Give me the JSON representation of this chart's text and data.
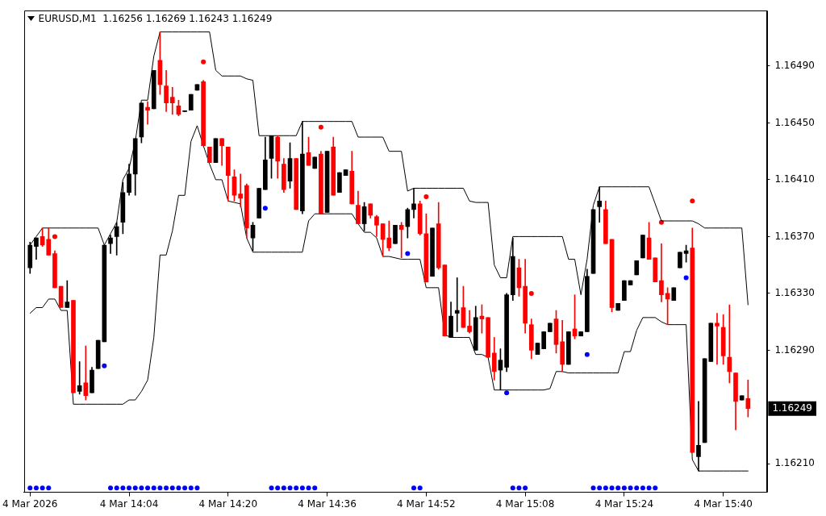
{
  "chart_data": {
    "type": "candlestick",
    "title": "EURUSD,M1  1.16256 1.16269 1.16243 1.16249",
    "x": [
      "2026-03-04T13:48",
      "2026-03-04T13:49",
      "2026-03-04T13:50",
      "2026-03-04T13:51",
      "2026-03-04T13:52",
      "2026-03-04T13:53",
      "2026-03-04T13:54",
      "2026-03-04T13:55",
      "2026-03-04T13:56",
      "2026-03-04T13:57",
      "2026-03-04T13:58",
      "2026-03-04T13:59",
      "2026-03-04T14:00",
      "2026-03-04T14:01",
      "2026-03-04T14:02",
      "2026-03-04T14:03",
      "2026-03-04T14:04",
      "2026-03-04T14:05",
      "2026-03-04T14:06",
      "2026-03-04T14:07",
      "2026-03-04T14:08",
      "2026-03-04T14:09",
      "2026-03-04T14:10",
      "2026-03-04T14:11",
      "2026-03-04T14:12",
      "2026-03-04T14:13",
      "2026-03-04T14:14",
      "2026-03-04T14:15",
      "2026-03-04T14:16",
      "2026-03-04T14:17",
      "2026-03-04T14:18",
      "2026-03-04T14:19",
      "2026-03-04T14:20",
      "2026-03-04T14:21",
      "2026-03-04T14:22",
      "2026-03-04T14:23",
      "2026-03-04T14:24",
      "2026-03-04T14:25",
      "2026-03-04T14:26",
      "2026-03-04T14:27",
      "2026-03-04T14:28",
      "2026-03-04T14:29",
      "2026-03-04T14:30",
      "2026-03-04T14:31",
      "2026-03-04T14:32",
      "2026-03-04T14:33",
      "2026-03-04T14:34",
      "2026-03-04T14:35",
      "2026-03-04T14:36",
      "2026-03-04T14:37",
      "2026-03-04T14:38",
      "2026-03-04T14:39",
      "2026-03-04T14:40",
      "2026-03-04T14:41",
      "2026-03-04T14:42",
      "2026-03-04T14:43",
      "2026-03-04T14:44",
      "2026-03-04T14:45",
      "2026-03-04T14:46",
      "2026-03-04T14:47",
      "2026-03-04T14:48",
      "2026-03-04T14:49",
      "2026-03-04T14:50",
      "2026-03-04T14:51",
      "2026-03-04T14:52",
      "2026-03-04T14:53",
      "2026-03-04T14:54",
      "2026-03-04T14:55",
      "2026-03-04T14:56",
      "2026-03-04T14:57",
      "2026-03-04T14:58",
      "2026-03-04T14:59",
      "2026-03-04T15:00",
      "2026-03-04T15:01",
      "2026-03-04T15:02",
      "2026-03-04T15:03",
      "2026-03-04T15:04",
      "2026-03-04T15:05",
      "2026-03-04T15:06",
      "2026-03-04T15:07",
      "2026-03-04T15:08",
      "2026-03-04T15:09",
      "2026-03-04T15:10",
      "2026-03-04T15:11",
      "2026-03-04T15:12",
      "2026-03-04T15:13",
      "2026-03-04T15:14",
      "2026-03-04T15:15",
      "2026-03-04T15:16",
      "2026-03-04T15:17",
      "2026-03-04T15:18",
      "2026-03-04T15:19",
      "2026-03-04T15:20",
      "2026-03-04T15:21",
      "2026-03-04T15:22",
      "2026-03-04T15:23",
      "2026-03-04T15:24",
      "2026-03-04T15:25",
      "2026-03-04T15:26",
      "2026-03-04T15:27",
      "2026-03-04T15:28",
      "2026-03-04T15:29",
      "2026-03-04T15:30",
      "2026-03-04T15:31",
      "2026-03-04T15:32",
      "2026-03-04T15:33",
      "2026-03-04T15:34",
      "2026-03-04T15:35",
      "2026-03-04T15:36",
      "2026-03-04T15:37",
      "2026-03-04T15:38",
      "2026-03-04T15:39",
      "2026-03-04T15:40",
      "2026-03-04T15:41",
      "2026-03-04T15:42",
      "2026-03-04T15:43",
      "2026-03-04T15:44"
    ],
    "ohlc": [
      [
        1.16348,
        1.16366,
        1.16344,
        1.16364
      ],
      [
        1.16363,
        1.16369,
        1.16354,
        1.16369
      ],
      [
        1.1637,
        1.16376,
        1.16363,
        1.16364
      ],
      [
        1.16368,
        1.16376,
        1.16357,
        1.16357
      ],
      [
        1.16358,
        1.1636,
        1.16334,
        1.16334
      ],
      [
        1.16335,
        1.16335,
        1.1632,
        1.1632
      ],
      [
        1.1632,
        1.16339,
        1.1632,
        1.16324
      ],
      [
        1.16325,
        1.16325,
        1.1626,
        1.1626
      ],
      [
        1.16261,
        1.16282,
        1.16259,
        1.16265
      ],
      [
        1.16267,
        1.16293,
        1.16255,
        1.16258
      ],
      [
        1.1626,
        1.16278,
        1.1626,
        1.16276
      ],
      [
        1.16277,
        1.16297,
        1.16277,
        1.16297
      ],
      [
        1.16296,
        1.16364,
        1.16296,
        1.16364
      ],
      [
        1.16365,
        1.16371,
        1.16358,
        1.16369
      ],
      [
        1.1637,
        1.1638,
        1.16357,
        1.16377
      ],
      [
        1.1638,
        1.16408,
        1.16372,
        1.16401
      ],
      [
        1.16401,
        1.16421,
        1.16399,
        1.16414
      ],
      [
        1.16414,
        1.16439,
        1.16399,
        1.16439
      ],
      [
        1.1644,
        1.16464,
        1.16436,
        1.16464
      ],
      [
        1.16461,
        1.16465,
        1.16449,
        1.16459
      ],
      [
        1.1646,
        1.16487,
        1.1646,
        1.16487
      ],
      [
        1.16494,
        1.16514,
        1.1647,
        1.16477
      ],
      [
        1.16476,
        1.16487,
        1.16458,
        1.16464
      ],
      [
        1.16468,
        1.16475,
        1.16456,
        1.16464
      ],
      [
        1.16462,
        1.16466,
        1.16455,
        1.16456
      ],
      [
        1.16458,
        1.16458,
        1.16458,
        1.16458
      ],
      [
        1.16459,
        1.1647,
        1.16459,
        1.1647
      ],
      [
        1.16473,
        1.16477,
        1.16473,
        1.16477
      ],
      [
        1.16479,
        1.1648,
        1.16434,
        1.16434
      ],
      [
        1.16433,
        1.16433,
        1.16422,
        1.16422
      ],
      [
        1.16422,
        1.16439,
        1.16422,
        1.16439
      ],
      [
        1.16439,
        1.16439,
        1.1642,
        1.16434
      ],
      [
        1.16433,
        1.16433,
        1.16395,
        1.16413
      ],
      [
        1.16412,
        1.16417,
        1.16395,
        1.16399
      ],
      [
        1.164,
        1.16414,
        1.16391,
        1.16397
      ],
      [
        1.16406,
        1.16407,
        1.16369,
        1.16376
      ],
      [
        1.16369,
        1.1638,
        1.1636,
        1.16378
      ],
      [
        1.16383,
        1.16404,
        1.16383,
        1.16404
      ],
      [
        1.16403,
        1.1644,
        1.16403,
        1.16424
      ],
      [
        1.16425,
        1.16441,
        1.16411,
        1.16441
      ],
      [
        1.1644,
        1.16441,
        1.16411,
        1.16423
      ],
      [
        1.16421,
        1.16425,
        1.16401,
        1.16403
      ],
      [
        1.16409,
        1.16436,
        1.16404,
        1.16425
      ],
      [
        1.16425,
        1.16425,
        1.16389,
        1.16389
      ],
      [
        1.16388,
        1.16451,
        1.16386,
        1.16428
      ],
      [
        1.16429,
        1.1644,
        1.1642,
        1.1642
      ],
      [
        1.16418,
        1.16426,
        1.16418,
        1.16426
      ],
      [
        1.16428,
        1.1643,
        1.16386,
        1.16386
      ],
      [
        1.16387,
        1.1643,
        1.16387,
        1.1643
      ],
      [
        1.16433,
        1.1644,
        1.16399,
        1.16399
      ],
      [
        1.16401,
        1.16415,
        1.16401,
        1.16415
      ],
      [
        1.16413,
        1.16417,
        1.16413,
        1.16417
      ],
      [
        1.16416,
        1.1643,
        1.16393,
        1.16393
      ],
      [
        1.16392,
        1.16402,
        1.16379,
        1.16379
      ],
      [
        1.16379,
        1.16394,
        1.16374,
        1.16391
      ],
      [
        1.16393,
        1.16393,
        1.16383,
        1.16385
      ],
      [
        1.16384,
        1.16385,
        1.1637,
        1.16378
      ],
      [
        1.16379,
        1.16379,
        1.16356,
        1.16368
      ],
      [
        1.16369,
        1.16381,
        1.1636,
        1.16362
      ],
      [
        1.16365,
        1.16378,
        1.16365,
        1.16378
      ],
      [
        1.16378,
        1.1638,
        1.16355,
        1.16375
      ],
      [
        1.16377,
        1.1639,
        1.16369,
        1.16389
      ],
      [
        1.16389,
        1.16404,
        1.16383,
        1.16393
      ],
      [
        1.16393,
        1.16395,
        1.16371,
        1.16372
      ],
      [
        1.16372,
        1.16386,
        1.16338,
        1.16338
      ],
      [
        1.16342,
        1.16376,
        1.16342,
        1.16376
      ],
      [
        1.16379,
        1.16394,
        1.16347,
        1.16348
      ],
      [
        1.1635,
        1.1635,
        1.163,
        1.163
      ],
      [
        1.16299,
        1.16324,
        1.16299,
        1.16314
      ],
      [
        1.16316,
        1.16341,
        1.16303,
        1.16318
      ],
      [
        1.1632,
        1.16335,
        1.16306,
        1.16306
      ],
      [
        1.16307,
        1.16318,
        1.16302,
        1.16303
      ],
      [
        1.1629,
        1.16321,
        1.1629,
        1.16313
      ],
      [
        1.16314,
        1.16322,
        1.16302,
        1.16312
      ],
      [
        1.16313,
        1.16313,
        1.16285,
        1.16285
      ],
      [
        1.16288,
        1.16299,
        1.16269,
        1.16275
      ],
      [
        1.16276,
        1.16291,
        1.16262,
        1.16283
      ],
      [
        1.16278,
        1.1633,
        1.16275,
        1.16329
      ],
      [
        1.16329,
        1.16369,
        1.16325,
        1.16356
      ],
      [
        1.16348,
        1.16354,
        1.16328,
        1.16334
      ],
      [
        1.16335,
        1.16354,
        1.16302,
        1.16309
      ],
      [
        1.16308,
        1.16312,
        1.16284,
        1.1629
      ],
      [
        1.16287,
        1.16295,
        1.16287,
        1.16295
      ],
      [
        1.16291,
        1.16303,
        1.16291,
        1.16303
      ],
      [
        1.16303,
        1.16309,
        1.16303,
        1.16309
      ],
      [
        1.16312,
        1.16318,
        1.16288,
        1.16294
      ],
      [
        1.16296,
        1.16311,
        1.16275,
        1.1628
      ],
      [
        1.1628,
        1.16303,
        1.1628,
        1.16303
      ],
      [
        1.16305,
        1.16329,
        1.16298,
        1.163
      ],
      [
        1.163,
        1.16303,
        1.163,
        1.16303
      ],
      [
        1.16303,
        1.16347,
        1.16303,
        1.16342
      ],
      [
        1.16344,
        1.16389,
        1.16344,
        1.16389
      ],
      [
        1.16391,
        1.16405,
        1.1638,
        1.16395
      ],
      [
        1.16389,
        1.16395,
        1.16365,
        1.16365
      ],
      [
        1.16368,
        1.16368,
        1.16317,
        1.1632
      ],
      [
        1.16318,
        1.16323,
        1.16318,
        1.16323
      ],
      [
        1.16325,
        1.16339,
        1.16325,
        1.16339
      ],
      [
        1.16336,
        1.16339,
        1.16336,
        1.16339
      ],
      [
        1.16343,
        1.16353,
        1.16343,
        1.16353
      ],
      [
        1.16355,
        1.16371,
        1.16355,
        1.16371
      ],
      [
        1.16369,
        1.1638,
        1.16354,
        1.16354
      ],
      [
        1.16355,
        1.16355,
        1.16338,
        1.16338
      ],
      [
        1.16339,
        1.16365,
        1.16324,
        1.16329
      ],
      [
        1.1633,
        1.16334,
        1.16308,
        1.16326
      ],
      [
        1.16325,
        1.16334,
        1.16325,
        1.16334
      ],
      [
        1.16348,
        1.16359,
        1.16348,
        1.16359
      ],
      [
        1.16358,
        1.16364,
        1.16352,
        1.1636
      ],
      [
        1.16362,
        1.16376,
        1.16218,
        1.16218
      ],
      [
        1.16215,
        1.16254,
        1.16205,
        1.16223
      ],
      [
        1.16225,
        1.16284,
        1.16225,
        1.16284
      ],
      [
        1.16282,
        1.16309,
        1.16282,
        1.16309
      ],
      [
        1.16309,
        1.16316,
        1.1628,
        1.16307
      ],
      [
        1.16306,
        1.16315,
        1.1628,
        1.16286
      ],
      [
        1.16285,
        1.16322,
        1.16267,
        1.16275
      ],
      [
        1.16274,
        1.16274,
        1.16234,
        1.16254
      ],
      [
        1.16255,
        1.16258,
        1.16255,
        1.16258
      ],
      [
        1.16256,
        1.16269,
        1.16243,
        1.16249
      ]
    ],
    "colors": [
      "#000000",
      "#000000",
      "#ff0000",
      "#ff0000",
      "#ff0000",
      "#ff0000",
      "#000000",
      "#ff0000",
      "#000000",
      "#ff0000",
      "#000000",
      "#000000",
      "#000000",
      "#000000",
      "#000000",
      "#000000",
      "#000000",
      "#000000",
      "#000000",
      "#ff0000",
      "#000000",
      "#ff0000",
      "#ff0000",
      "#ff0000",
      "#ff0000",
      "#000000",
      "#000000",
      "#000000",
      "#ff0000",
      "#ff0000",
      "#000000",
      "#ff0000",
      "#ff0000",
      "#ff0000",
      "#ff0000",
      "#ff0000",
      "#000000",
      "#000000",
      "#000000",
      "#000000",
      "#ff0000",
      "#ff0000",
      "#000000",
      "#ff0000",
      "#000000",
      "#ff0000",
      "#000000",
      "#ff0000",
      "#000000",
      "#ff0000",
      "#000000",
      "#000000",
      "#ff0000",
      "#ff0000",
      "#000000",
      "#ff0000",
      "#ff0000",
      "#ff0000",
      "#ff0000",
      "#000000",
      "#ff0000",
      "#000000",
      "#000000",
      "#ff0000",
      "#ff0000",
      "#000000",
      "#ff0000",
      "#ff0000",
      "#000000",
      "#000000",
      "#ff0000",
      "#ff0000",
      "#000000",
      "#ff0000",
      "#ff0000",
      "#ff0000",
      "#000000",
      "#000000",
      "#000000",
      "#ff0000",
      "#ff0000",
      "#ff0000",
      "#000000",
      "#000000",
      "#000000",
      "#ff0000",
      "#ff0000",
      "#000000",
      "#ff0000",
      "#000000",
      "#000000",
      "#000000",
      "#000000",
      "#ff0000",
      "#ff0000",
      "#000000",
      "#000000",
      "#000000",
      "#000000",
      "#000000",
      "#ff0000",
      "#ff0000",
      "#ff0000",
      "#ff0000",
      "#000000",
      "#000000",
      "#000000",
      "#ff0000",
      "#000000",
      "#000000",
      "#000000",
      "#ff0000",
      "#ff0000",
      "#ff0000",
      "#ff0000",
      "#000000",
      "#ff0000"
    ],
    "series": [
      {
        "type": "line",
        "color": "#000000",
        "values": [
          1.16364,
          1.1637,
          1.16376,
          1.16376,
          1.16376,
          1.16376,
          1.16376,
          1.16376,
          1.16376,
          1.16376,
          1.16376,
          1.16376,
          1.16364,
          1.16372,
          1.1638,
          1.1641,
          1.16418,
          1.16437,
          1.16466,
          1.16466,
          1.16497,
          1.16514,
          1.16514,
          1.16514,
          1.16514,
          1.16514,
          1.16514,
          1.16514,
          1.16514,
          1.16514,
          1.16487,
          1.16483,
          1.16483,
          1.16483,
          1.16483,
          1.16481,
          1.1648,
          1.16441,
          1.16441,
          1.16441,
          1.16441,
          1.16441,
          1.16441,
          1.16441,
          1.16451,
          1.16451,
          1.16451,
          1.16451,
          1.16451,
          1.16451,
          1.16451,
          1.16451,
          1.16451,
          1.1644,
          1.1644,
          1.1644,
          1.1644,
          1.1644,
          1.1643,
          1.1643,
          1.1643,
          1.16402,
          1.16404,
          1.16404,
          1.16404,
          1.16404,
          1.16404,
          1.16404,
          1.16404,
          1.16404,
          1.16404,
          1.16395,
          1.16394,
          1.16394,
          1.16394,
          1.1635,
          1.16341,
          1.16341,
          1.1637,
          1.1637,
          1.1637,
          1.1637,
          1.1637,
          1.1637,
          1.1637,
          1.1637,
          1.1637,
          1.16354,
          1.16354,
          1.16329,
          1.16354,
          1.16392,
          1.16405,
          1.16405,
          1.16405,
          1.16405,
          1.16405,
          1.16405,
          1.16405,
          1.16405,
          1.16405,
          1.16393,
          1.16381,
          1.16381,
          1.16381,
          1.16381,
          1.16381,
          1.16381,
          1.16379,
          1.16376,
          1.16376,
          1.16376,
          1.16376,
          1.16376,
          1.16376,
          1.16376,
          1.16322
        ]
      },
      {
        "type": "line",
        "color": "#000000",
        "values": [
          1.16316,
          1.1632,
          1.1632,
          1.16326,
          1.16326,
          1.16318,
          1.16318,
          1.16252,
          1.16252,
          1.16252,
          1.16252,
          1.16252,
          1.16252,
          1.16252,
          1.16252,
          1.16252,
          1.16255,
          1.16255,
          1.16261,
          1.16269,
          1.16299,
          1.16357,
          1.16357,
          1.16374,
          1.16399,
          1.16399,
          1.16437,
          1.16448,
          1.16434,
          1.16421,
          1.1641,
          1.1641,
          1.16395,
          1.16394,
          1.16393,
          1.16369,
          1.16359,
          1.16359,
          1.16359,
          1.16359,
          1.16359,
          1.16359,
          1.16359,
          1.16359,
          1.16359,
          1.16381,
          1.16386,
          1.16386,
          1.16386,
          1.16386,
          1.16386,
          1.16386,
          1.16386,
          1.16379,
          1.16373,
          1.16373,
          1.16369,
          1.16356,
          1.16356,
          1.16355,
          1.16354,
          1.16354,
          1.16354,
          1.16354,
          1.16334,
          1.16334,
          1.16334,
          1.16301,
          1.16299,
          1.16299,
          1.16299,
          1.16299,
          1.16287,
          1.16287,
          1.16285,
          1.16262,
          1.16262,
          1.16262,
          1.16262,
          1.16262,
          1.16262,
          1.16262,
          1.16262,
          1.16262,
          1.16263,
          1.16275,
          1.16275,
          1.16274,
          1.16274,
          1.16274,
          1.16274,
          1.16274,
          1.16274,
          1.16274,
          1.16274,
          1.16274,
          1.16289,
          1.16289,
          1.16304,
          1.16313,
          1.16313,
          1.16313,
          1.1631,
          1.16308,
          1.16308,
          1.16308,
          1.16308,
          1.16213,
          1.16205,
          1.16205,
          1.16205,
          1.16205,
          1.16205,
          1.16205,
          1.16205,
          1.16205,
          1.16205
        ]
      },
      {
        "type": "scatter",
        "color": "#ff0000",
        "marker": "circle",
        "x": [
          "2026-03-04T13:52",
          "2026-03-04T14:16",
          "2026-03-04T14:35",
          "2026-03-04T14:52",
          "2026-03-04T15:09",
          "2026-03-04T15:30",
          "2026-03-04T15:35"
        ],
        "values": [
          1.1637,
          1.16493,
          1.16447,
          1.16398,
          1.1633,
          1.1638,
          1.16395
        ]
      },
      {
        "type": "scatter",
        "color": "#0000ff",
        "marker": "circle",
        "x": [
          "2026-03-04T14:00",
          "2026-03-04T14:26",
          "2026-03-04T14:49",
          "2026-03-04T15:05",
          "2026-03-04T15:18",
          "2026-03-04T15:34"
        ],
        "values": [
          1.16279,
          1.1639,
          1.16358,
          1.1626,
          1.16287,
          1.16341
        ]
      },
      {
        "type": "scatter",
        "color": "#0000ff",
        "marker": "circle",
        "x": [
          "2026-03-04T13:48",
          "2026-03-04T13:49",
          "2026-03-04T13:50",
          "2026-03-04T13:51",
          "2026-03-04T14:01",
          "2026-03-04T14:02",
          "2026-03-04T14:03",
          "2026-03-04T14:04",
          "2026-03-04T14:05",
          "2026-03-04T14:06",
          "2026-03-04T14:07",
          "2026-03-04T14:08",
          "2026-03-04T14:09",
          "2026-03-04T14:10",
          "2026-03-04T14:11",
          "2026-03-04T14:12",
          "2026-03-04T14:13",
          "2026-03-04T14:14",
          "2026-03-04T14:15",
          "2026-03-04T14:27",
          "2026-03-04T14:28",
          "2026-03-04T14:29",
          "2026-03-04T14:30",
          "2026-03-04T14:31",
          "2026-03-04T14:32",
          "2026-03-04T14:33",
          "2026-03-04T14:34",
          "2026-03-04T14:50",
          "2026-03-04T14:51",
          "2026-03-04T15:06",
          "2026-03-04T15:07",
          "2026-03-04T15:08",
          "2026-03-04T15:19",
          "2026-03-04T15:20",
          "2026-03-04T15:21",
          "2026-03-04T15:22",
          "2026-03-04T15:23",
          "2026-03-04T15:24",
          "2026-03-04T15:25",
          "2026-03-04T15:26",
          "2026-03-04T15:27",
          "2026-03-04T15:28",
          "2026-03-04T15:29"
        ],
        "values": [
          1.16193,
          1.16193,
          1.16193,
          1.16193,
          1.16193,
          1.16193,
          1.16193,
          1.16193,
          1.16193,
          1.16193,
          1.16193,
          1.16193,
          1.16193,
          1.16193,
          1.16193,
          1.16193,
          1.16193,
          1.16193,
          1.16193,
          1.16193,
          1.16193,
          1.16193,
          1.16193,
          1.16193,
          1.16193,
          1.16193,
          1.16193,
          1.16193,
          1.16193,
          1.16193,
          1.16193,
          1.16193,
          1.16193,
          1.16193,
          1.16193,
          1.16193,
          1.16193,
          1.16193,
          1.16193,
          1.16193,
          1.16193,
          1.16193,
          1.16193
        ]
      }
    ],
    "xlim": [
      "2026-03-04T13:47",
      "2026-03-04T15:47"
    ],
    "xticks": [
      {
        "value": "2026-03-04T13:48",
        "label": "4 Mar 2026"
      },
      {
        "value": "2026-03-04T14:04",
        "label": "4 Mar 14:04"
      },
      {
        "value": "2026-03-04T14:20",
        "label": "4 Mar 14:20"
      },
      {
        "value": "2026-03-04T14:36",
        "label": "4 Mar 14:36"
      },
      {
        "value": "2026-03-04T14:52",
        "label": "4 Mar 14:52"
      },
      {
        "value": "2026-03-04T15:08",
        "label": "4 Mar 15:08"
      },
      {
        "value": "2026-03-04T15:24",
        "label": "4 Mar 15:24"
      },
      {
        "value": "2026-03-04T15:40",
        "label": "4 Mar 15:40"
      }
    ],
    "ylim": [
      1.1619,
      1.16529
    ],
    "yticks": [
      {
        "value": 1.1621,
        "label": "1.16210"
      },
      {
        "value": 1.1629,
        "label": "1.16290"
      },
      {
        "value": 1.1633,
        "label": "1.16330"
      },
      {
        "value": 1.1637,
        "label": "1.16370"
      },
      {
        "value": 1.1641,
        "label": "1.16410"
      },
      {
        "value": 1.1645,
        "label": "1.16450"
      },
      {
        "value": 1.1649,
        "label": "1.16490"
      }
    ],
    "annotations": [
      "1.16249"
    ]
  }
}
